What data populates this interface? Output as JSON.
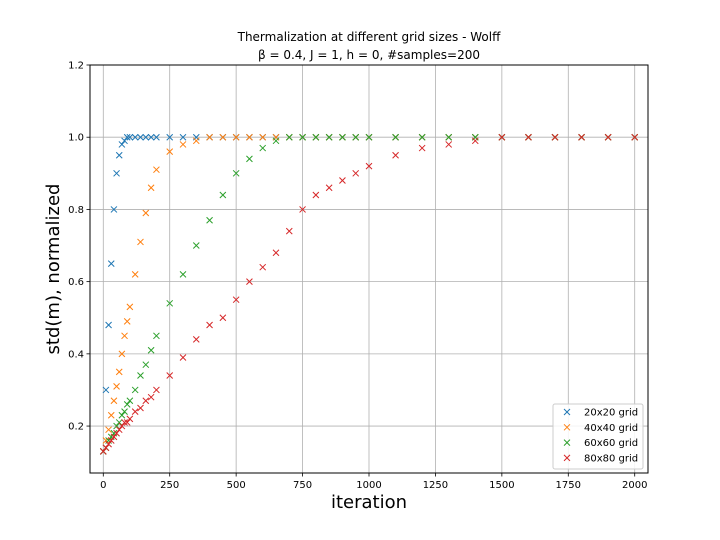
{
  "chart_data": {
    "type": "scatter",
    "title": "Thermalization at different grid sizes - Wolff",
    "subtitle": "β = 0.4, J = 1, h = 0, #samples=200",
    "xlabel": "iteration",
    "ylabel": "std(m), normalized",
    "xlim": [
      -50,
      2050
    ],
    "ylim": [
      0.07,
      1.2
    ],
    "xticks": [
      0,
      250,
      500,
      750,
      1000,
      1250,
      1500,
      1750,
      2000
    ],
    "xtick_labels": [
      "0",
      "250",
      "500",
      "750",
      "1000",
      "1250",
      "1500",
      "1750",
      "2000"
    ],
    "yticks": [
      0.2,
      0.4,
      0.6,
      0.8,
      1.0,
      1.2
    ],
    "ytick_labels": [
      "0.2",
      "0.4",
      "0.6",
      "0.8",
      "1.0",
      "1.2"
    ],
    "grid": true,
    "marker": "x",
    "legend_position": "lower-right",
    "x": [
      0,
      10,
      20,
      30,
      40,
      50,
      60,
      70,
      80,
      90,
      100,
      120,
      140,
      160,
      180,
      200,
      250,
      300,
      350,
      400,
      450,
      500,
      550,
      600,
      650,
      700,
      750,
      800,
      850,
      900,
      950,
      1000,
      1100,
      1200,
      1300,
      1400,
      1500,
      1600,
      1700,
      1800,
      1900,
      2000
    ],
    "series": [
      {
        "name": "20x20 grid",
        "color": "#1f77b4",
        "values": [
          0.13,
          0.3,
          0.48,
          0.65,
          0.8,
          0.9,
          0.95,
          0.98,
          0.99,
          1.0,
          1.0,
          1.0,
          1.0,
          1.0,
          1.0,
          1.0,
          1.0,
          1.0,
          1.0,
          1.0,
          1.0,
          1.0,
          1.0,
          1.0,
          1.0,
          1.0,
          1.0,
          1.0,
          1.0,
          1.0,
          1.0,
          1.0,
          1.0,
          1.0,
          1.0,
          1.0,
          1.0,
          1.0,
          1.0,
          1.0,
          1.0,
          1.0
        ]
      },
      {
        "name": "40x40 grid",
        "color": "#ff7f0e",
        "values": [
          0.13,
          0.16,
          0.19,
          0.23,
          0.27,
          0.31,
          0.35,
          0.4,
          0.45,
          0.49,
          0.53,
          0.62,
          0.71,
          0.79,
          0.86,
          0.91,
          0.96,
          0.98,
          0.99,
          1.0,
          1.0,
          1.0,
          1.0,
          1.0,
          1.0,
          1.0,
          1.0,
          1.0,
          1.0,
          1.0,
          1.0,
          1.0,
          1.0,
          1.0,
          1.0,
          1.0,
          1.0,
          1.0,
          1.0,
          1.0,
          1.0,
          1.0
        ]
      },
      {
        "name": "60x60 grid",
        "color": "#2ca02c",
        "values": [
          0.13,
          0.14,
          0.16,
          0.17,
          0.18,
          0.2,
          0.21,
          0.23,
          0.24,
          0.26,
          0.27,
          0.3,
          0.34,
          0.37,
          0.41,
          0.45,
          0.54,
          0.62,
          0.7,
          0.77,
          0.84,
          0.9,
          0.94,
          0.97,
          0.99,
          1.0,
          1.0,
          1.0,
          1.0,
          1.0,
          1.0,
          1.0,
          1.0,
          1.0,
          1.0,
          1.0,
          1.0,
          1.0,
          1.0,
          1.0,
          1.0,
          1.0
        ]
      },
      {
        "name": "80x80 grid",
        "color": "#d62728",
        "values": [
          0.13,
          0.14,
          0.15,
          0.16,
          0.17,
          0.18,
          0.19,
          0.2,
          0.21,
          0.21,
          0.22,
          0.24,
          0.25,
          0.27,
          0.28,
          0.3,
          0.34,
          0.39,
          0.44,
          0.48,
          0.5,
          0.55,
          0.6,
          0.64,
          0.68,
          0.74,
          0.8,
          0.84,
          0.86,
          0.88,
          0.9,
          0.92,
          0.95,
          0.97,
          0.98,
          0.99,
          1.0,
          1.0,
          1.0,
          1.0,
          1.0,
          1.0
        ]
      }
    ]
  }
}
